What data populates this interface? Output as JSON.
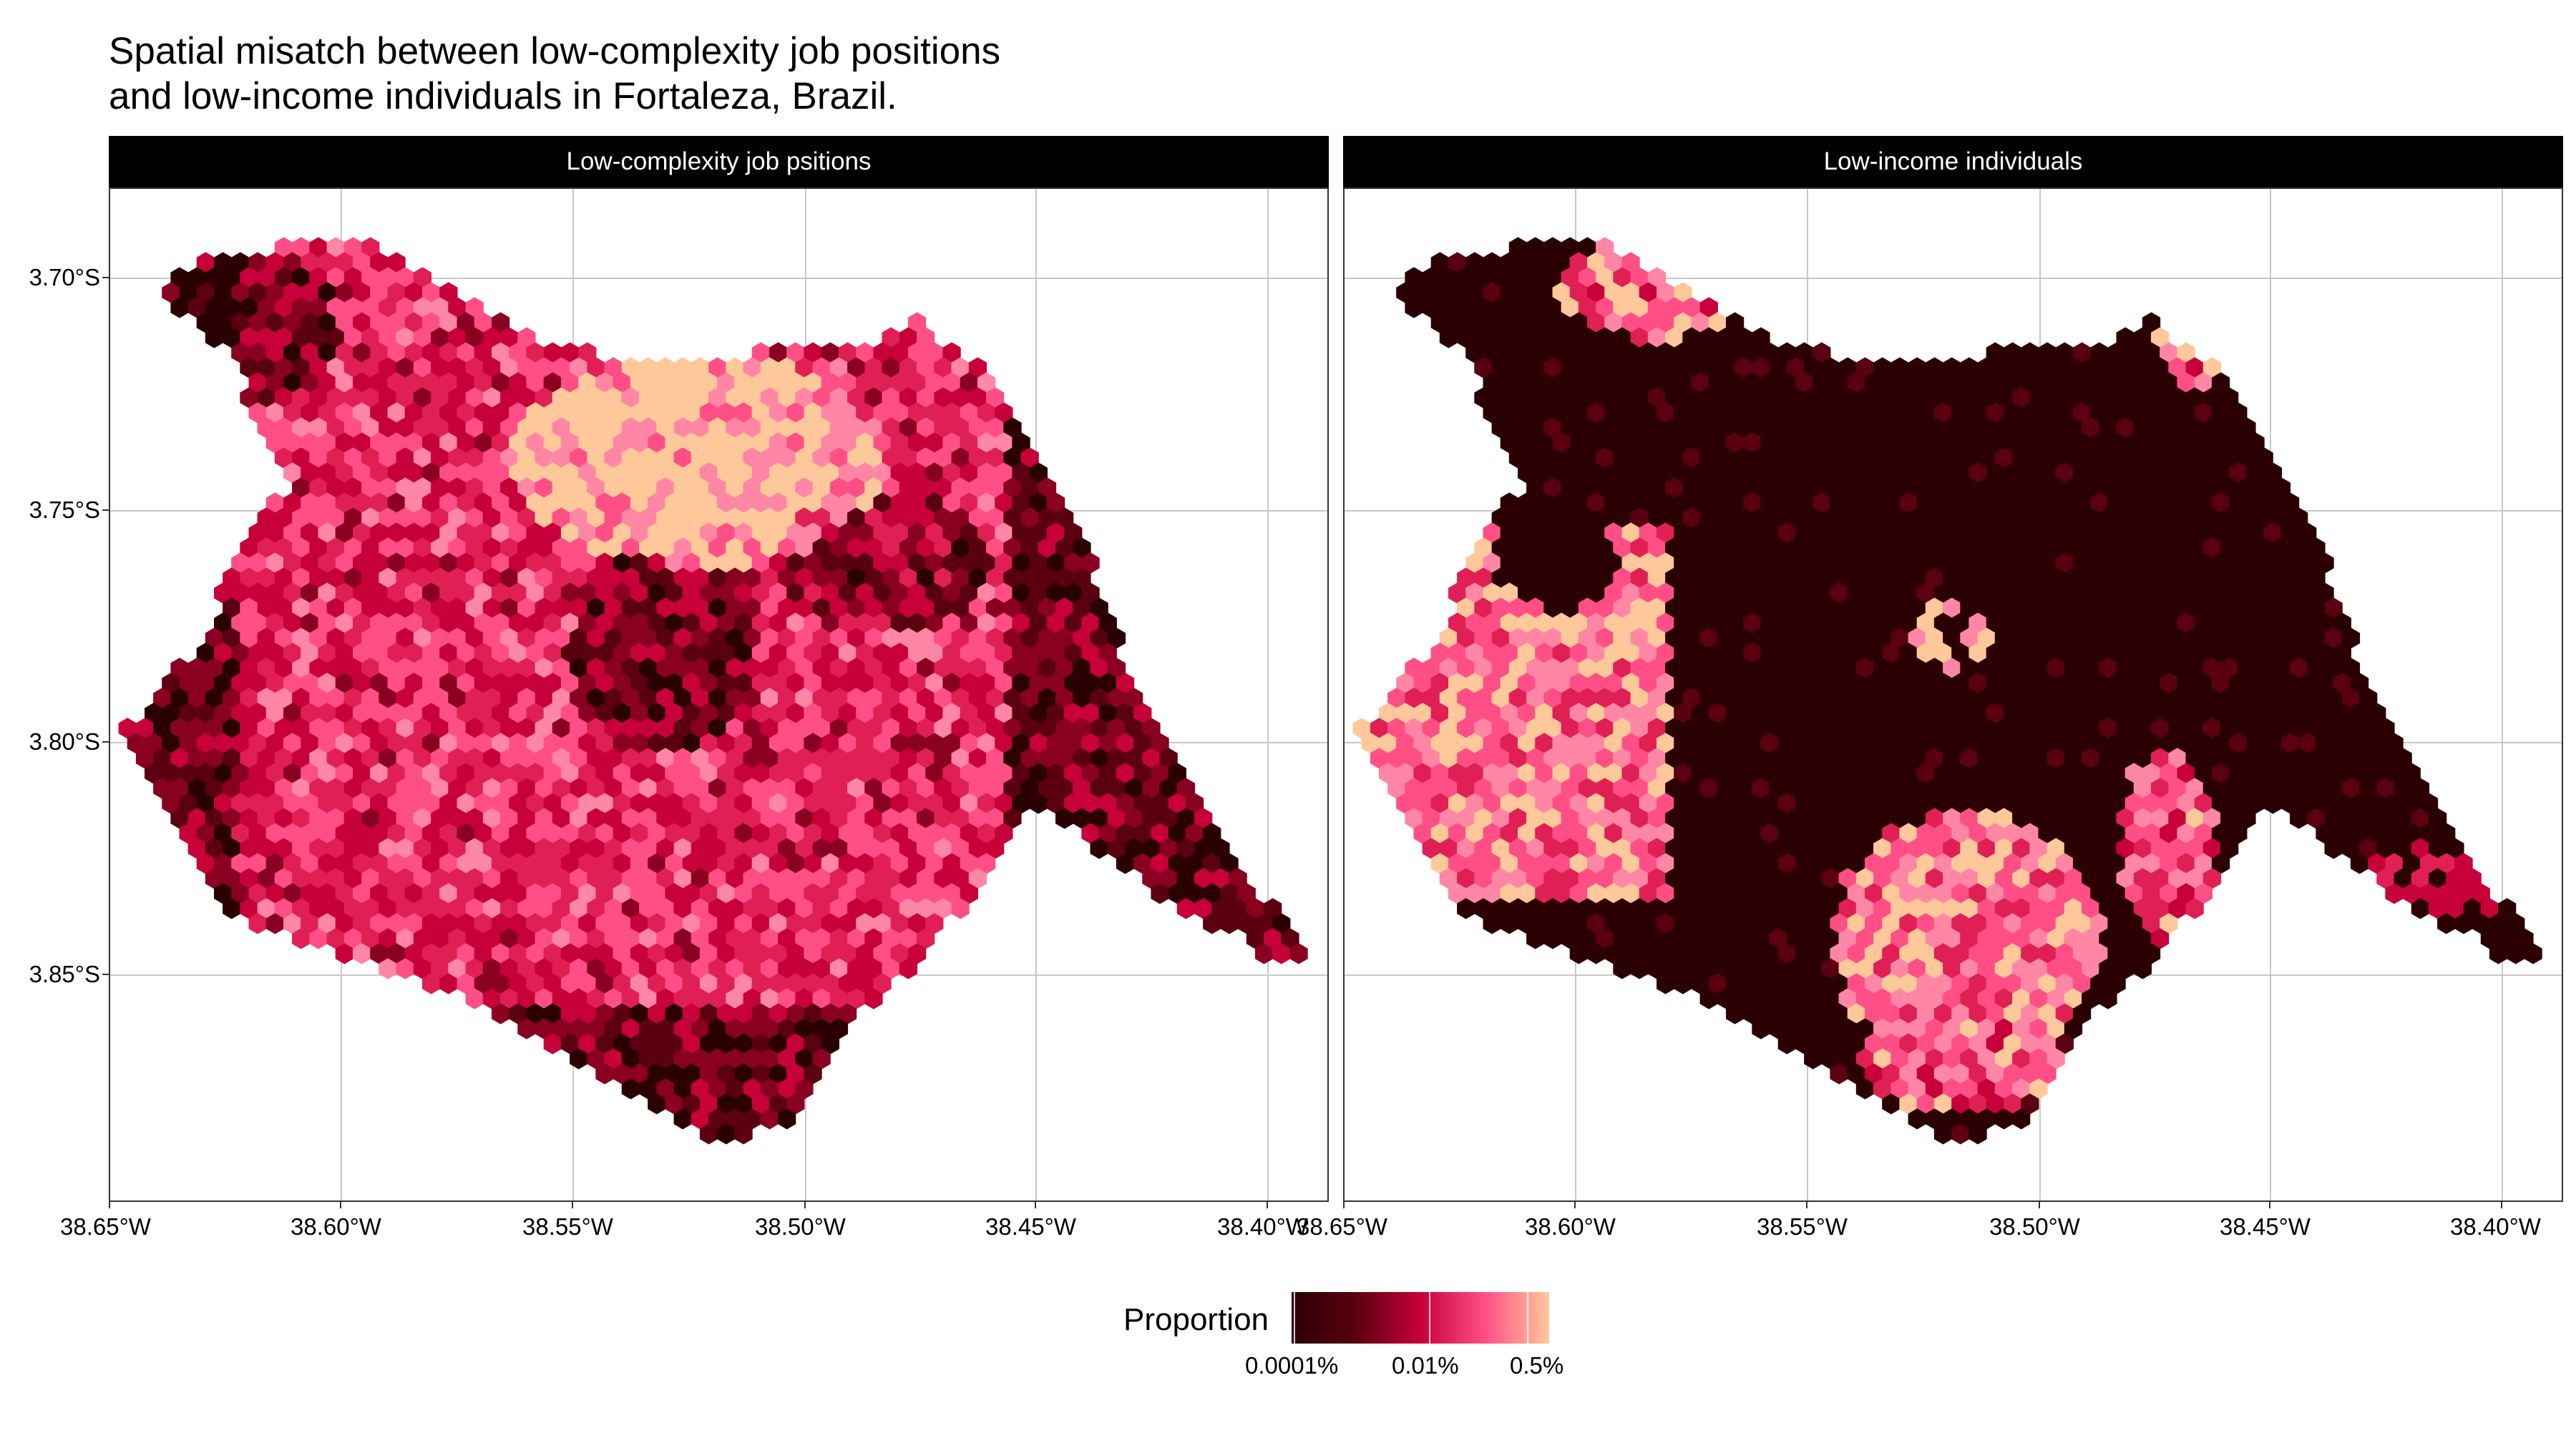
{
  "title": {
    "line1": "Spatial misatch between low-complexity job positions",
    "line2": "and low-income individuals in Fortaleza, Brazil."
  },
  "panels": [
    {
      "label": "Low-complexity job psitions",
      "pattern": "jobs"
    },
    {
      "label": "Low-income individuals",
      "pattern": "income"
    }
  ],
  "y_axis": {
    "ticks": [
      "3.70°S",
      "3.75°S",
      "3.80°S",
      "3.85°S"
    ]
  },
  "x_axis": {
    "ticks": [
      "38.65°W",
      "38.60°W",
      "38.55°W",
      "38.50°W",
      "38.45°W",
      "38.40°W"
    ]
  },
  "legend": {
    "title": "Proportion",
    "labels": [
      "0.0001%",
      "0.01%",
      "0.5%"
    ]
  },
  "colors": {
    "darkest": "#2b0003",
    "dark": "#5a0010",
    "crimson": "#c7003a",
    "pink": "#ff4f86",
    "peach": "#ffc89a",
    "grid": "#c8c8c8"
  }
}
